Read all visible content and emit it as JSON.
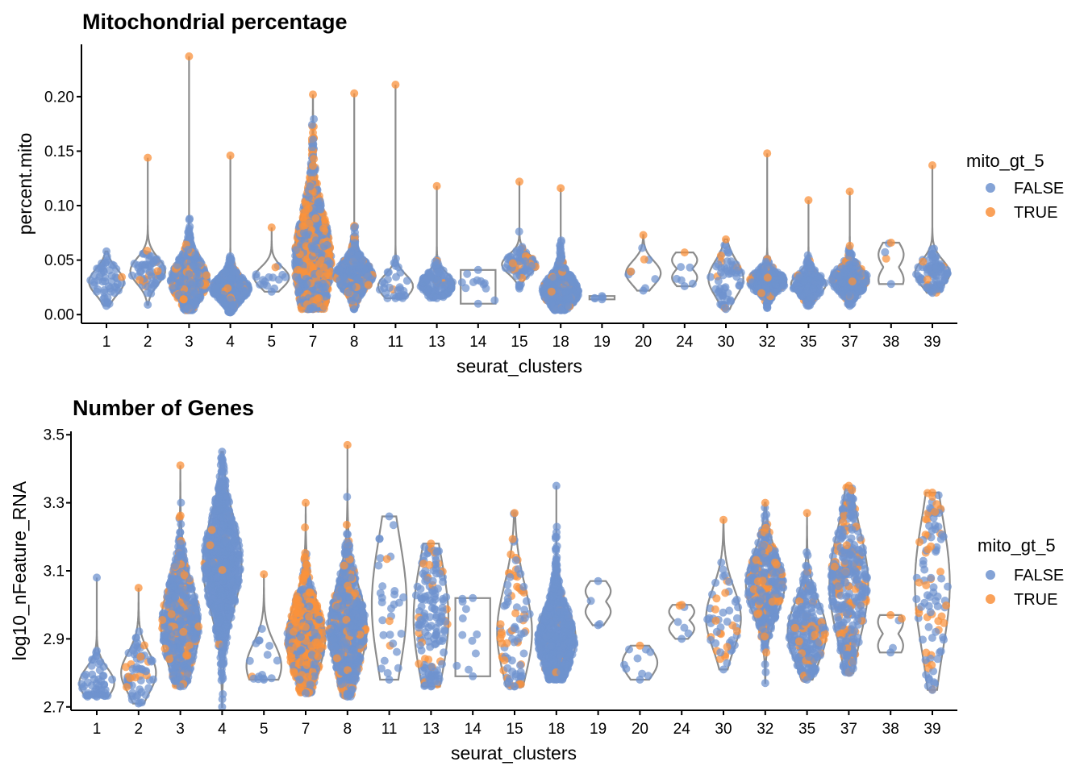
{
  "colors": {
    "FALSE": "#6f93cf",
    "TRUE": "#f9913c",
    "violin": "#8c8c8c"
  },
  "chart_data": [
    {
      "id": "mito",
      "type": "violin",
      "title": "Mitochondrial percentage",
      "xlabel": "seurat_clusters",
      "ylabel": "percent.mito",
      "ylim": [
        -0.008,
        0.248
      ],
      "yticks": [
        "0.00",
        "0.05",
        "0.10",
        "0.15",
        "0.20"
      ],
      "ytick_values": [
        0.0,
        0.05,
        0.1,
        0.15,
        0.2
      ],
      "legend": {
        "title": "mito_gt_5",
        "entries": [
          "FALSE",
          "TRUE"
        ],
        "position": "right"
      },
      "categories": [
        "1",
        "2",
        "3",
        "4",
        "5",
        "7",
        "8",
        "11",
        "13",
        "14",
        "15",
        "18",
        "19",
        "20",
        "24",
        "30",
        "32",
        "35",
        "37",
        "38",
        "39"
      ],
      "groups": [
        {
          "cluster": "1",
          "min": 0.008,
          "q1": 0.022,
          "median": 0.03,
          "q3": 0.038,
          "max": 0.058,
          "n": 50,
          "density": "normal",
          "true_frac": 0.05
        },
        {
          "cluster": "2",
          "min": 0.009,
          "q1": 0.032,
          "median": 0.04,
          "q3": 0.048,
          "max": 0.144,
          "n": 60,
          "density": "normal",
          "true_frac": 0.1
        },
        {
          "cluster": "3",
          "min": 0.004,
          "q1": 0.022,
          "median": 0.032,
          "q3": 0.045,
          "max": 0.237,
          "n": 600,
          "density": "skew",
          "true_frac": 0.2
        },
        {
          "cluster": "4",
          "min": 0.002,
          "q1": 0.018,
          "median": 0.024,
          "q3": 0.032,
          "max": 0.146,
          "n": 600,
          "density": "skew",
          "true_frac": 0.1
        },
        {
          "cluster": "5",
          "min": 0.021,
          "q1": 0.027,
          "median": 0.034,
          "q3": 0.04,
          "max": 0.08,
          "n": 15,
          "density": "normal",
          "true_frac": 0.15
        },
        {
          "cluster": "7",
          "min": 0.005,
          "q1": 0.03,
          "median": 0.048,
          "q3": 0.075,
          "max": 0.202,
          "n": 1200,
          "density": "wide",
          "true_frac": 0.5
        },
        {
          "cluster": "8",
          "min": 0.005,
          "q1": 0.028,
          "median": 0.036,
          "q3": 0.045,
          "max": 0.203,
          "n": 700,
          "density": "skew",
          "true_frac": 0.15
        },
        {
          "cluster": "11",
          "min": 0.015,
          "q1": 0.02,
          "median": 0.026,
          "q3": 0.034,
          "max": 0.211,
          "n": 30,
          "density": "skew",
          "true_frac": 0.06
        },
        {
          "cluster": "13",
          "min": 0.015,
          "q1": 0.022,
          "median": 0.028,
          "q3": 0.035,
          "max": 0.118,
          "n": 120,
          "density": "normal",
          "true_frac": 0.06
        },
        {
          "cluster": "14",
          "min": 0.01,
          "q1": 0.018,
          "median": 0.026,
          "q3": 0.034,
          "max": 0.041,
          "n": 10,
          "density": "uniform",
          "true_frac": 0.0
        },
        {
          "cluster": "15",
          "min": 0.024,
          "q1": 0.04,
          "median": 0.046,
          "q3": 0.052,
          "max": 0.122,
          "n": 80,
          "density": "normal",
          "true_frac": 0.2
        },
        {
          "cluster": "18",
          "min": 0.004,
          "q1": 0.015,
          "median": 0.022,
          "q3": 0.032,
          "max": 0.116,
          "n": 600,
          "density": "skew",
          "true_frac": 0.08
        },
        {
          "cluster": "19",
          "min": 0.014,
          "q1": 0.015,
          "median": 0.015,
          "q3": 0.016,
          "max": 0.017,
          "n": 3,
          "density": "flat",
          "true_frac": 0.0
        },
        {
          "cluster": "20",
          "min": 0.022,
          "q1": 0.03,
          "median": 0.038,
          "q3": 0.045,
          "max": 0.073,
          "n": 8,
          "density": "normal",
          "true_frac": 0.12
        },
        {
          "cluster": "24",
          "min": 0.026,
          "q1": 0.034,
          "median": 0.042,
          "q3": 0.05,
          "max": 0.057,
          "n": 5,
          "density": "notch",
          "true_frac": 0.2
        },
        {
          "cluster": "30",
          "min": 0.005,
          "q1": 0.022,
          "median": 0.033,
          "q3": 0.044,
          "max": 0.069,
          "n": 60,
          "density": "normal",
          "true_frac": 0.15
        },
        {
          "cluster": "32",
          "min": 0.006,
          "q1": 0.024,
          "median": 0.03,
          "q3": 0.036,
          "max": 0.148,
          "n": 250,
          "density": "normal",
          "true_frac": 0.12
        },
        {
          "cluster": "35",
          "min": 0.008,
          "q1": 0.022,
          "median": 0.028,
          "q3": 0.035,
          "max": 0.105,
          "n": 200,
          "density": "normal",
          "true_frac": 0.06
        },
        {
          "cluster": "37",
          "min": 0.008,
          "q1": 0.025,
          "median": 0.032,
          "q3": 0.04,
          "max": 0.113,
          "n": 250,
          "density": "normal",
          "true_frac": 0.12
        },
        {
          "cluster": "38",
          "min": 0.028,
          "q1": 0.032,
          "median": 0.04,
          "q3": 0.055,
          "max": 0.066,
          "n": 3,
          "density": "notch",
          "true_frac": 0.33
        },
        {
          "cluster": "39",
          "min": 0.02,
          "q1": 0.03,
          "median": 0.038,
          "q3": 0.046,
          "max": 0.137,
          "n": 90,
          "density": "normal",
          "true_frac": 0.12
        }
      ]
    },
    {
      "id": "genes",
      "type": "violin",
      "title": "Number of Genes",
      "xlabel": "seurat_clusters",
      "ylabel": "log10_nFeature_RNA",
      "ylim": [
        2.69,
        3.51
      ],
      "yticks": [
        "2.7",
        "2.9",
        "3.1",
        "3.3",
        "3.5"
      ],
      "ytick_values": [
        2.7,
        2.9,
        3.1,
        3.3,
        3.5
      ],
      "legend": {
        "title": "mito_gt_5",
        "entries": [
          "FALSE",
          "TRUE"
        ],
        "position": "right"
      },
      "categories": [
        "1",
        "2",
        "3",
        "4",
        "5",
        "7",
        "8",
        "11",
        "13",
        "14",
        "15",
        "18",
        "19",
        "20",
        "24",
        "30",
        "32",
        "35",
        "37",
        "38",
        "39"
      ],
      "groups": [
        {
          "cluster": "1",
          "min": 2.73,
          "q1": 2.75,
          "median": 2.77,
          "q3": 2.81,
          "max": 3.08,
          "n": 50,
          "density": "skew",
          "true_frac": 0.05
        },
        {
          "cluster": "2",
          "min": 2.71,
          "q1": 2.76,
          "median": 2.8,
          "q3": 2.84,
          "max": 3.05,
          "n": 60,
          "density": "normal",
          "true_frac": 0.12
        },
        {
          "cluster": "3",
          "min": 2.76,
          "q1": 2.86,
          "median": 2.94,
          "q3": 3.02,
          "max": 3.41,
          "n": 600,
          "density": "normal",
          "true_frac": 0.25
        },
        {
          "cluster": "4",
          "min": 2.7,
          "q1": 3.02,
          "median": 3.12,
          "q3": 3.2,
          "max": 3.45,
          "n": 700,
          "density": "normal",
          "true_frac": 0.01
        },
        {
          "cluster": "5",
          "min": 2.78,
          "q1": 2.79,
          "median": 2.82,
          "q3": 2.88,
          "max": 3.09,
          "n": 15,
          "density": "skew",
          "true_frac": 0.2
        },
        {
          "cluster": "7",
          "min": 2.74,
          "q1": 2.84,
          "median": 2.9,
          "q3": 2.98,
          "max": 3.3,
          "n": 600,
          "density": "normal",
          "true_frac": 0.55
        },
        {
          "cluster": "8",
          "min": 2.73,
          "q1": 2.86,
          "median": 2.93,
          "q3": 3.02,
          "max": 3.47,
          "n": 700,
          "density": "normal",
          "true_frac": 0.18
        },
        {
          "cluster": "11",
          "min": 2.78,
          "q1": 2.9,
          "median": 3.0,
          "q3": 3.1,
          "max": 3.26,
          "n": 30,
          "density": "wide",
          "true_frac": 0.05
        },
        {
          "cluster": "13",
          "min": 2.76,
          "q1": 2.88,
          "median": 2.96,
          "q3": 3.06,
          "max": 3.18,
          "n": 150,
          "density": "wide",
          "true_frac": 0.1
        },
        {
          "cluster": "14",
          "min": 2.79,
          "q1": 2.84,
          "median": 2.9,
          "q3": 2.96,
          "max": 3.02,
          "n": 10,
          "density": "uniform",
          "true_frac": 0.0
        },
        {
          "cluster": "15",
          "min": 2.76,
          "q1": 2.86,
          "median": 2.92,
          "q3": 3.04,
          "max": 3.27,
          "n": 90,
          "density": "normal",
          "true_frac": 0.4
        },
        {
          "cluster": "18",
          "min": 2.78,
          "q1": 2.84,
          "median": 2.9,
          "q3": 2.96,
          "max": 3.35,
          "n": 700,
          "density": "skew",
          "true_frac": 0.04
        },
        {
          "cluster": "19",
          "min": 2.94,
          "q1": 2.98,
          "median": 3.0,
          "q3": 3.04,
          "max": 3.07,
          "n": 2,
          "density": "notch",
          "true_frac": 0.0
        },
        {
          "cluster": "20",
          "min": 2.78,
          "q1": 2.8,
          "median": 2.83,
          "q3": 2.86,
          "max": 2.88,
          "n": 8,
          "density": "normal",
          "true_frac": 0.12
        },
        {
          "cluster": "24",
          "min": 2.9,
          "q1": 2.93,
          "median": 2.96,
          "q3": 2.98,
          "max": 3.0,
          "n": 5,
          "density": "notch",
          "true_frac": 0.2
        },
        {
          "cluster": "30",
          "min": 2.81,
          "q1": 2.9,
          "median": 2.96,
          "q3": 3.02,
          "max": 3.25,
          "n": 50,
          "density": "normal",
          "true_frac": 0.3
        },
        {
          "cluster": "32",
          "min": 2.77,
          "q1": 3.0,
          "median": 3.06,
          "q3": 3.12,
          "max": 3.3,
          "n": 350,
          "density": "normal",
          "true_frac": 0.25
        },
        {
          "cluster": "35",
          "min": 2.78,
          "q1": 2.86,
          "median": 2.92,
          "q3": 2.98,
          "max": 3.27,
          "n": 250,
          "density": "normal",
          "true_frac": 0.12
        },
        {
          "cluster": "37",
          "min": 2.8,
          "q1": 2.98,
          "median": 3.06,
          "q3": 3.14,
          "max": 3.35,
          "n": 350,
          "density": "wide",
          "true_frac": 0.2
        },
        {
          "cluster": "38",
          "min": 2.86,
          "q1": 2.88,
          "median": 2.92,
          "q3": 2.95,
          "max": 2.97,
          "n": 3,
          "density": "notch",
          "true_frac": 0.33
        },
        {
          "cluster": "39",
          "min": 2.75,
          "q1": 2.96,
          "median": 3.06,
          "q3": 3.16,
          "max": 3.33,
          "n": 100,
          "density": "wide",
          "true_frac": 0.3
        }
      ]
    }
  ]
}
